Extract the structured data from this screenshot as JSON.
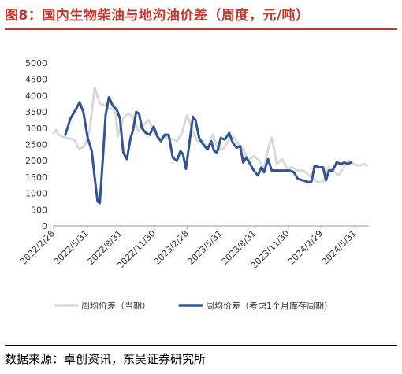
{
  "title": "图8：国内生物柴油与地沟油价差（周度，元/吨）",
  "source": "数据来源：卓创资讯，东吴证券研究所",
  "colors": {
    "title": "#c0392b",
    "series_current": "#d9d9d9",
    "series_lagged": "#2f5597"
  },
  "chart_data": {
    "type": "line",
    "title": "",
    "xlabel": "",
    "ylabel": "",
    "ylim": [
      0,
      5000
    ],
    "yticks": [
      0,
      500,
      1000,
      1500,
      2000,
      2500,
      3000,
      3500,
      4000,
      4500,
      5000
    ],
    "xlim": [
      "2022-02-28",
      "2024-07-07"
    ],
    "xticks": [
      "2022/2/28",
      "2022/5/31",
      "2022/8/31",
      "2022/11/30",
      "2023/2/28",
      "2023/5/31",
      "2023/8/31",
      "2023/11/30",
      "2024/2/29",
      "2024/5/31"
    ],
    "grid": false,
    "legend_position": "bottom",
    "series": [
      {
        "name": "周均价差（当期）",
        "points": [
          [
            "2022-02-28",
            2850
          ],
          [
            "2022-03-07",
            2950
          ],
          [
            "2022-03-14",
            2800
          ],
          [
            "2022-03-21",
            2750
          ],
          [
            "2022-04-04",
            2700
          ],
          [
            "2022-04-25",
            2650
          ],
          [
            "2022-05-09",
            2350
          ],
          [
            "2022-05-23",
            2450
          ],
          [
            "2022-06-06",
            2900
          ],
          [
            "2022-06-20",
            4250
          ],
          [
            "2022-07-04",
            3750
          ],
          [
            "2022-07-18",
            3700
          ],
          [
            "2022-08-01",
            3600
          ],
          [
            "2022-08-15",
            3600
          ],
          [
            "2022-08-22",
            2750
          ],
          [
            "2022-09-05",
            3300
          ],
          [
            "2022-09-19",
            3450
          ],
          [
            "2022-10-03",
            3350
          ],
          [
            "2022-10-17",
            2900
          ],
          [
            "2022-10-31",
            3100
          ],
          [
            "2022-11-14",
            3250
          ],
          [
            "2022-11-28",
            2900
          ],
          [
            "2022-12-12",
            2650
          ],
          [
            "2022-12-26",
            2750
          ],
          [
            "2023-01-09",
            2700
          ],
          [
            "2023-01-30",
            2600
          ],
          [
            "2023-02-13",
            2850
          ],
          [
            "2023-02-27",
            3400
          ],
          [
            "2023-03-13",
            2950
          ],
          [
            "2023-03-27",
            2600
          ],
          [
            "2023-04-10",
            2600
          ],
          [
            "2023-04-24",
            2400
          ],
          [
            "2023-05-08",
            2800
          ],
          [
            "2023-05-22",
            2400
          ],
          [
            "2023-06-05",
            2350
          ],
          [
            "2023-06-19",
            2600
          ],
          [
            "2023-07-03",
            2750
          ],
          [
            "2023-07-17",
            2500
          ],
          [
            "2023-07-31",
            2350
          ],
          [
            "2023-08-14",
            2000
          ],
          [
            "2023-08-28",
            2150
          ],
          [
            "2023-09-11",
            2000
          ],
          [
            "2023-09-25",
            1800
          ],
          [
            "2023-10-09",
            2500
          ],
          [
            "2023-10-16",
            2700
          ],
          [
            "2023-10-23",
            2300
          ],
          [
            "2023-10-30",
            1900
          ],
          [
            "2023-11-13",
            2050
          ],
          [
            "2023-11-27",
            1750
          ],
          [
            "2023-12-11",
            1800
          ],
          [
            "2023-12-25",
            1700
          ],
          [
            "2024-01-08",
            1700
          ],
          [
            "2024-01-22",
            1600
          ],
          [
            "2024-02-05",
            1450
          ],
          [
            "2024-02-19",
            1350
          ],
          [
            "2024-03-04",
            1350
          ],
          [
            "2024-03-18",
            1800
          ],
          [
            "2024-04-01",
            1700
          ],
          [
            "2024-04-15",
            1550
          ],
          [
            "2024-04-29",
            1800
          ],
          [
            "2024-05-13",
            2000
          ],
          [
            "2024-05-27",
            1900
          ],
          [
            "2024-06-10",
            1850
          ],
          [
            "2024-06-24",
            1900
          ],
          [
            "2024-07-01",
            1850
          ]
        ]
      },
      {
        "name": "周均价差（考虑1个月库存周期）",
        "points": [
          [
            "2022-04-01",
            2800
          ],
          [
            "2022-04-15",
            3300
          ],
          [
            "2022-05-01",
            3600
          ],
          [
            "2022-05-10",
            3800
          ],
          [
            "2022-05-20",
            3500
          ],
          [
            "2022-06-01",
            2700
          ],
          [
            "2022-06-12",
            2300
          ],
          [
            "2022-06-22",
            1300
          ],
          [
            "2022-06-28",
            750
          ],
          [
            "2022-07-04",
            700
          ],
          [
            "2022-07-12",
            2000
          ],
          [
            "2022-07-20",
            3400
          ],
          [
            "2022-07-29",
            3950
          ],
          [
            "2022-08-08",
            3700
          ],
          [
            "2022-08-20",
            3550
          ],
          [
            "2022-08-28",
            3300
          ],
          [
            "2022-09-06",
            2250
          ],
          [
            "2022-09-16",
            2050
          ],
          [
            "2022-09-26",
            2700
          ],
          [
            "2022-10-03",
            2950
          ],
          [
            "2022-10-11",
            3500
          ],
          [
            "2022-10-19",
            3450
          ],
          [
            "2022-10-27",
            3000
          ],
          [
            "2022-11-07",
            2850
          ],
          [
            "2022-11-17",
            2800
          ],
          [
            "2022-11-28",
            3050
          ],
          [
            "2022-12-08",
            2750
          ],
          [
            "2022-12-18",
            2600
          ],
          [
            "2022-12-28",
            2800
          ],
          [
            "2023-01-08",
            2800
          ],
          [
            "2023-01-19",
            2100
          ],
          [
            "2023-01-30",
            2000
          ],
          [
            "2023-02-09",
            2300
          ],
          [
            "2023-02-16",
            2200
          ],
          [
            "2023-02-24",
            1750
          ],
          [
            "2023-03-06",
            2600
          ],
          [
            "2023-03-15",
            3350
          ],
          [
            "2023-03-22",
            3250
          ],
          [
            "2023-04-01",
            2700
          ],
          [
            "2023-04-12",
            2500
          ],
          [
            "2023-04-24",
            2350
          ],
          [
            "2023-05-04",
            2600
          ],
          [
            "2023-05-12",
            2300
          ],
          [
            "2023-05-20",
            2250
          ],
          [
            "2023-05-30",
            2700
          ],
          [
            "2023-06-10",
            2650
          ],
          [
            "2023-06-22",
            2850
          ],
          [
            "2023-07-02",
            2550
          ],
          [
            "2023-07-12",
            2400
          ],
          [
            "2023-07-22",
            2450
          ],
          [
            "2023-07-30",
            1950
          ],
          [
            "2023-08-08",
            2100
          ],
          [
            "2023-08-18",
            1900
          ],
          [
            "2023-08-28",
            1700
          ],
          [
            "2023-09-08",
            1550
          ],
          [
            "2023-09-18",
            1800
          ],
          [
            "2023-09-25",
            1650
          ],
          [
            "2023-10-06",
            2050
          ],
          [
            "2023-10-16",
            1700
          ],
          [
            "2023-10-28",
            1700
          ],
          [
            "2023-11-08",
            1700
          ],
          [
            "2023-11-22",
            1700
          ],
          [
            "2023-12-04",
            1700
          ],
          [
            "2023-12-15",
            1650
          ],
          [
            "2023-12-26",
            1450
          ],
          [
            "2024-01-08",
            1400
          ],
          [
            "2024-01-22",
            1350
          ],
          [
            "2024-02-01",
            1350
          ],
          [
            "2024-02-10",
            1850
          ],
          [
            "2024-02-22",
            1800
          ],
          [
            "2024-03-04",
            1800
          ],
          [
            "2024-03-12",
            1400
          ],
          [
            "2024-03-20",
            1700
          ],
          [
            "2024-03-30",
            1700
          ],
          [
            "2024-04-10",
            1950
          ],
          [
            "2024-04-22",
            1900
          ],
          [
            "2024-05-01",
            1950
          ],
          [
            "2024-05-10",
            1900
          ],
          [
            "2024-05-20",
            1950
          ]
        ]
      }
    ]
  }
}
